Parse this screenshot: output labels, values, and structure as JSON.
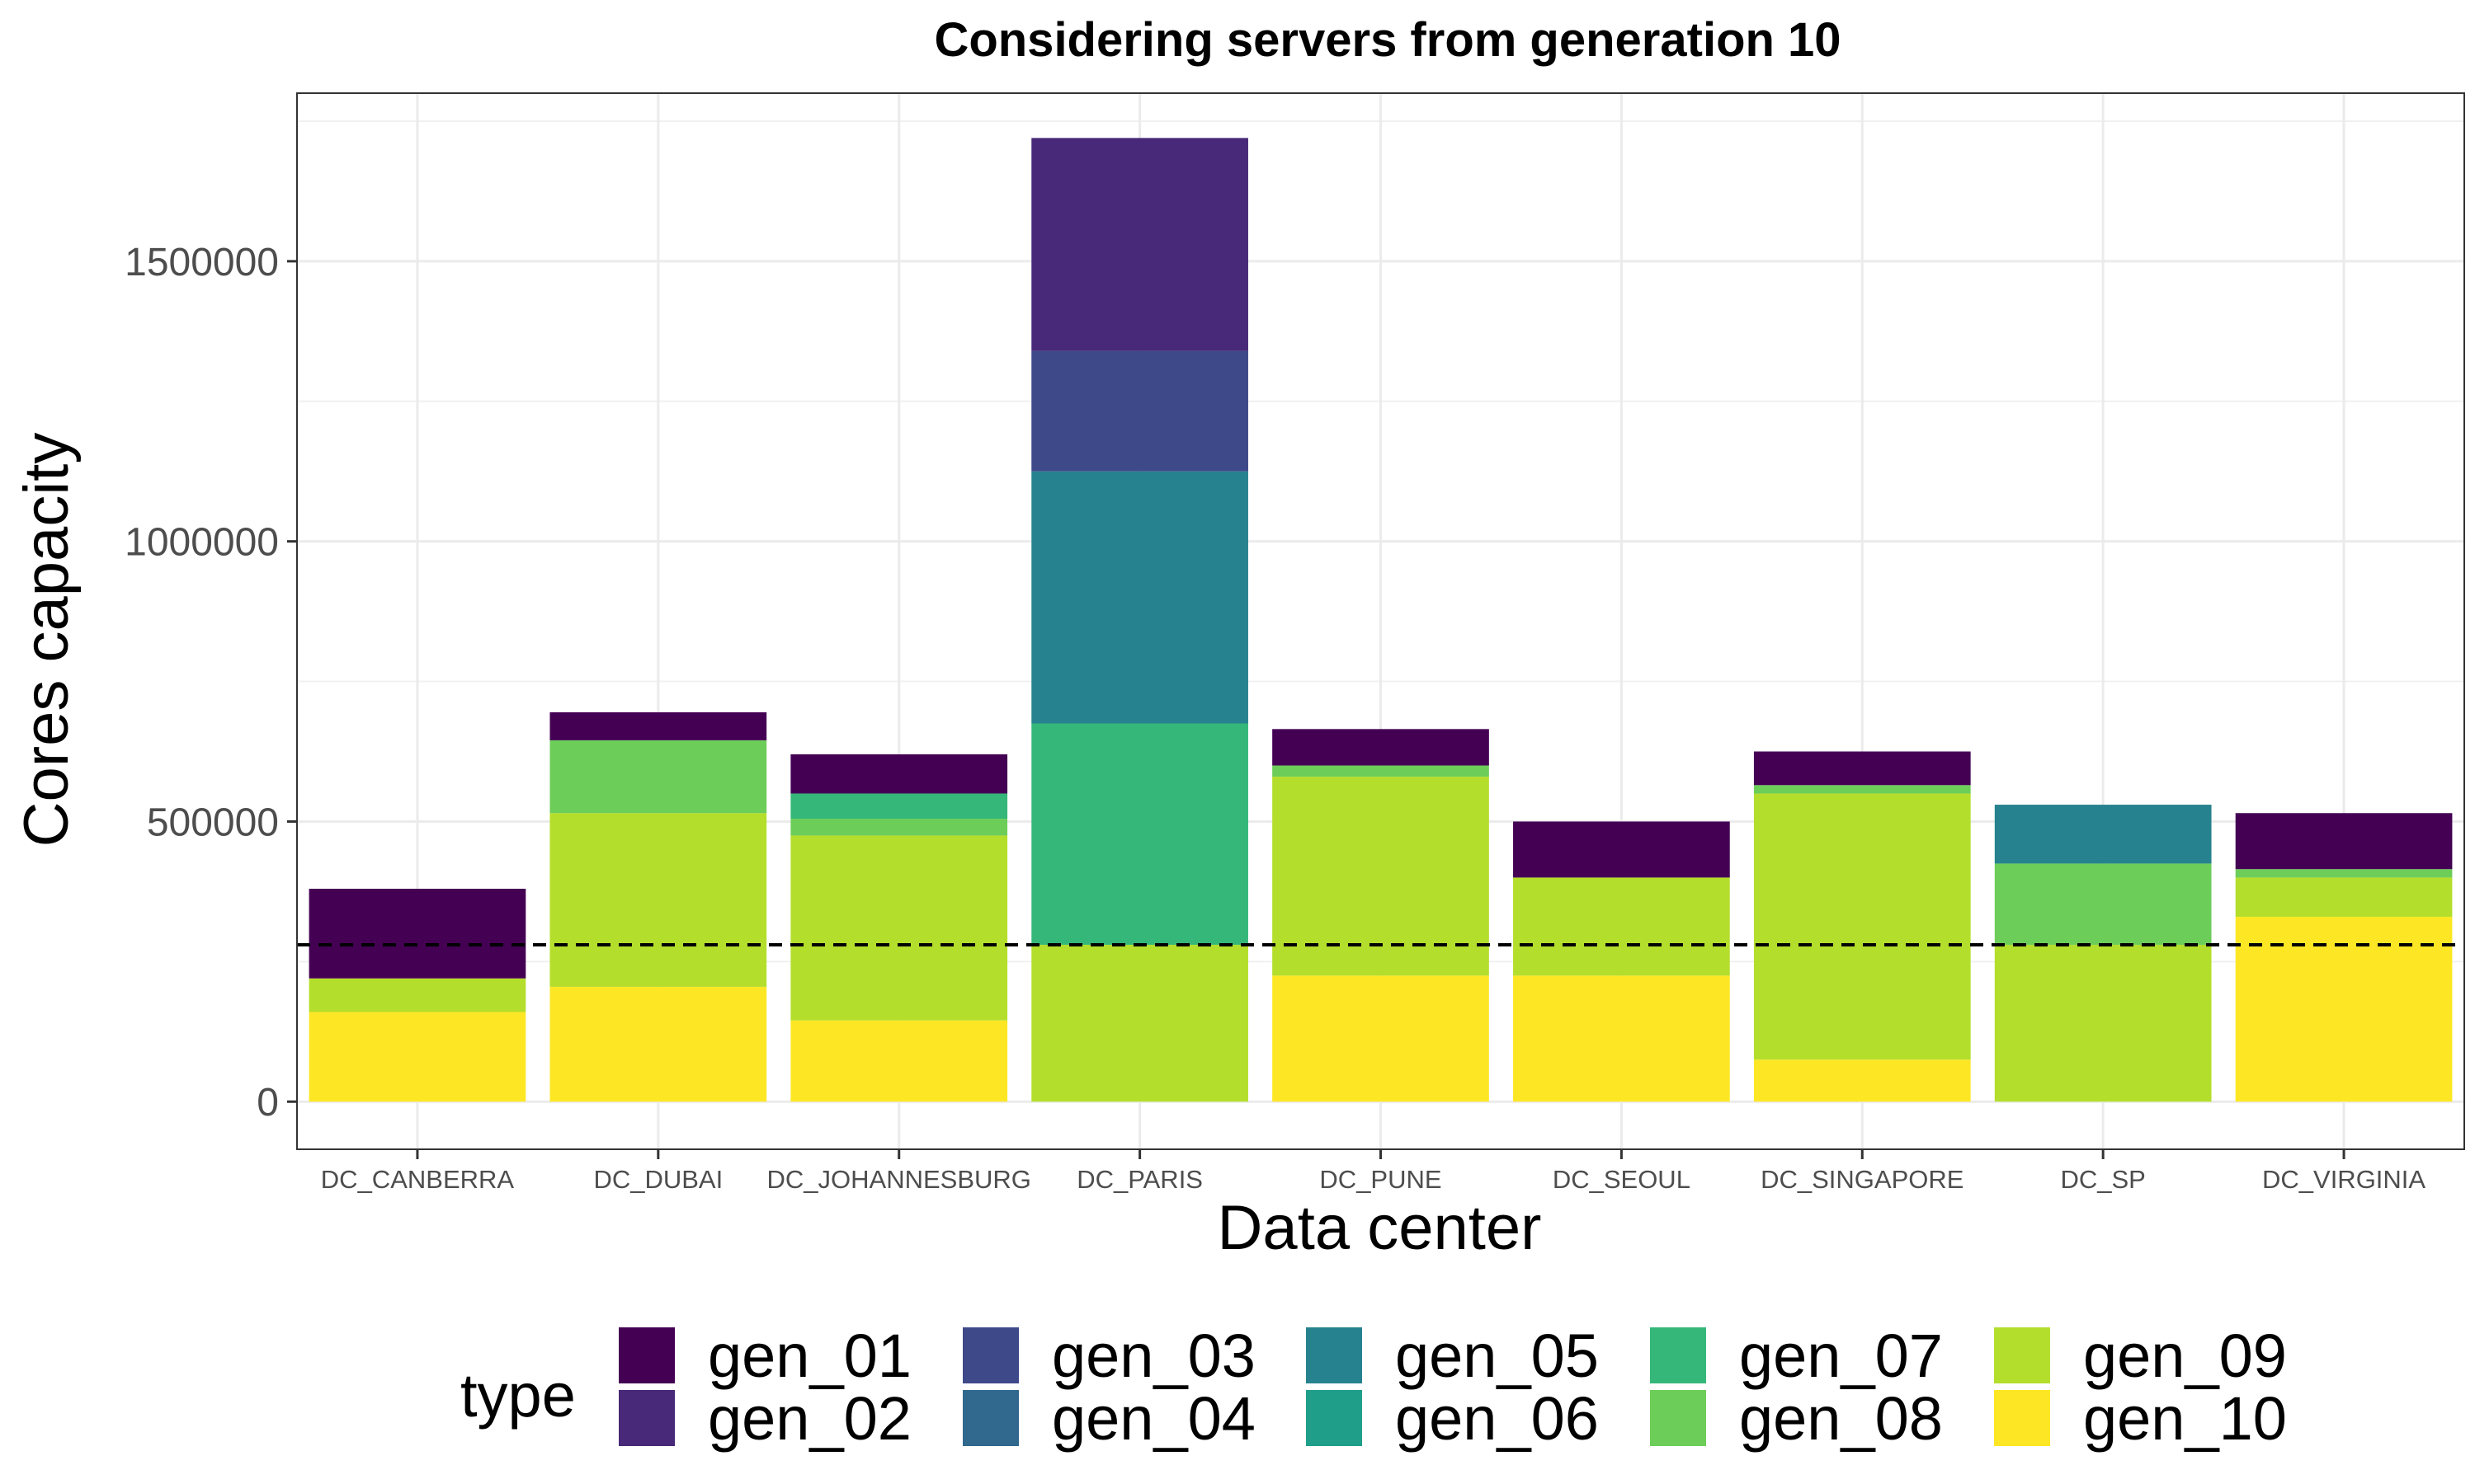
{
  "chart_data": {
    "type": "bar",
    "stacked": true,
    "title": "Considering servers from generation 10",
    "xlabel": "Data center",
    "ylabel": "Cores capacity",
    "ylim": [
      -85000,
      1800000
    ],
    "yticks": [
      0,
      500000,
      1000000,
      1500000
    ],
    "ytick_labels": [
      "0",
      "500000",
      "1000000",
      "1500000"
    ],
    "grid": true,
    "legend_title": "type",
    "legend_position": "bottom",
    "reference_line": {
      "y": 280000,
      "style": "dashed"
    },
    "categories": [
      "DC_CANBERRA",
      "DC_DUBAI",
      "DC_JOHANNESBURG",
      "DC_PARIS",
      "DC_PUNE",
      "DC_SEOUL",
      "DC_SINGAPORE",
      "DC_SP",
      "DC_VIRGINIA"
    ],
    "series": [
      {
        "name": "gen_01",
        "color": "#440154",
        "values": [
          160000,
          50000,
          70000,
          0,
          65000,
          100000,
          60000,
          0,
          100000
        ]
      },
      {
        "name": "gen_02",
        "color": "#482878",
        "values": [
          0,
          0,
          0,
          380000,
          0,
          0,
          0,
          0,
          0
        ]
      },
      {
        "name": "gen_03",
        "color": "#3E4989",
        "values": [
          0,
          0,
          0,
          215000,
          0,
          0,
          0,
          0,
          0
        ]
      },
      {
        "name": "gen_04",
        "color": "#31688E",
        "values": [
          0,
          0,
          0,
          0,
          0,
          0,
          0,
          0,
          0
        ]
      },
      {
        "name": "gen_05",
        "color": "#26828E",
        "values": [
          0,
          0,
          0,
          450000,
          0,
          0,
          0,
          105000,
          0
        ]
      },
      {
        "name": "gen_06",
        "color": "#1F9E89",
        "values": [
          0,
          0,
          0,
          0,
          0,
          0,
          0,
          0,
          0
        ]
      },
      {
        "name": "gen_07",
        "color": "#35B779",
        "values": [
          0,
          0,
          45000,
          395000,
          0,
          0,
          0,
          0,
          0
        ]
      },
      {
        "name": "gen_08",
        "color": "#6DCD59",
        "values": [
          0,
          130000,
          30000,
          0,
          20000,
          0,
          15000,
          145000,
          15000
        ]
      },
      {
        "name": "gen_09",
        "color": "#B4DE2C",
        "values": [
          60000,
          310000,
          330000,
          280000,
          355000,
          175000,
          475000,
          280000,
          70000
        ]
      },
      {
        "name": "gen_10",
        "color": "#FDE725",
        "values": [
          160000,
          205000,
          145000,
          0,
          225000,
          225000,
          75000,
          0,
          330000
        ]
      }
    ]
  }
}
